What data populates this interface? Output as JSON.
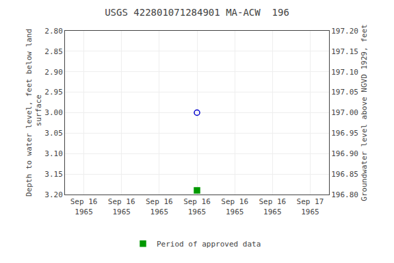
{
  "chart_data": {
    "type": "scatter",
    "title": "USGS 422801071284901 MA-ACW  196",
    "ylabel": "Depth to water level, feet below land\n surface",
    "y2label": "Groundwater level above NGVD 1929, feet",
    "categories": [
      "Sep 16\n1965",
      "Sep 16\n1965",
      "Sep 16\n1965",
      "Sep 16\n1965",
      "Sep 16\n1965",
      "Sep 16\n1965",
      "Sep 17\n1965"
    ],
    "series": [
      {
        "color": "#0000cc",
        "marker": "circle-open",
        "values": [
          null,
          null,
          null,
          3.0,
          null,
          null,
          null
        ]
      },
      {
        "name": "Period of approved data",
        "color": "#009900",
        "marker": "square",
        "values": [
          null,
          null,
          null,
          3.19,
          null,
          null,
          null
        ]
      }
    ],
    "ylim": [
      3.2,
      2.8
    ],
    "yticks": [
      {
        "value": 2.8,
        "label": "2.80"
      },
      2.85,
      {
        "value": 2.9,
        "label": "2.90"
      },
      2.95,
      {
        "value": 3.0,
        "label": "3.00"
      },
      3.05,
      {
        "value": 3.1,
        "label": "3.10"
      },
      3.15,
      {
        "value": 3.2,
        "label": "3.20"
      }
    ],
    "y2lim": [
      196.8,
      197.2
    ],
    "y2ticks": [
      {
        "value": 197.2,
        "label": "197.20"
      },
      197.15,
      {
        "value": 197.1,
        "label": "197.10"
      },
      197.05,
      {
        "value": 197.0,
        "label": "197.00"
      },
      196.95,
      {
        "value": 196.9,
        "label": "196.90"
      },
      196.85,
      {
        "value": 196.8,
        "label": "196.80"
      }
    ],
    "grid": true,
    "legend": "bottom"
  }
}
